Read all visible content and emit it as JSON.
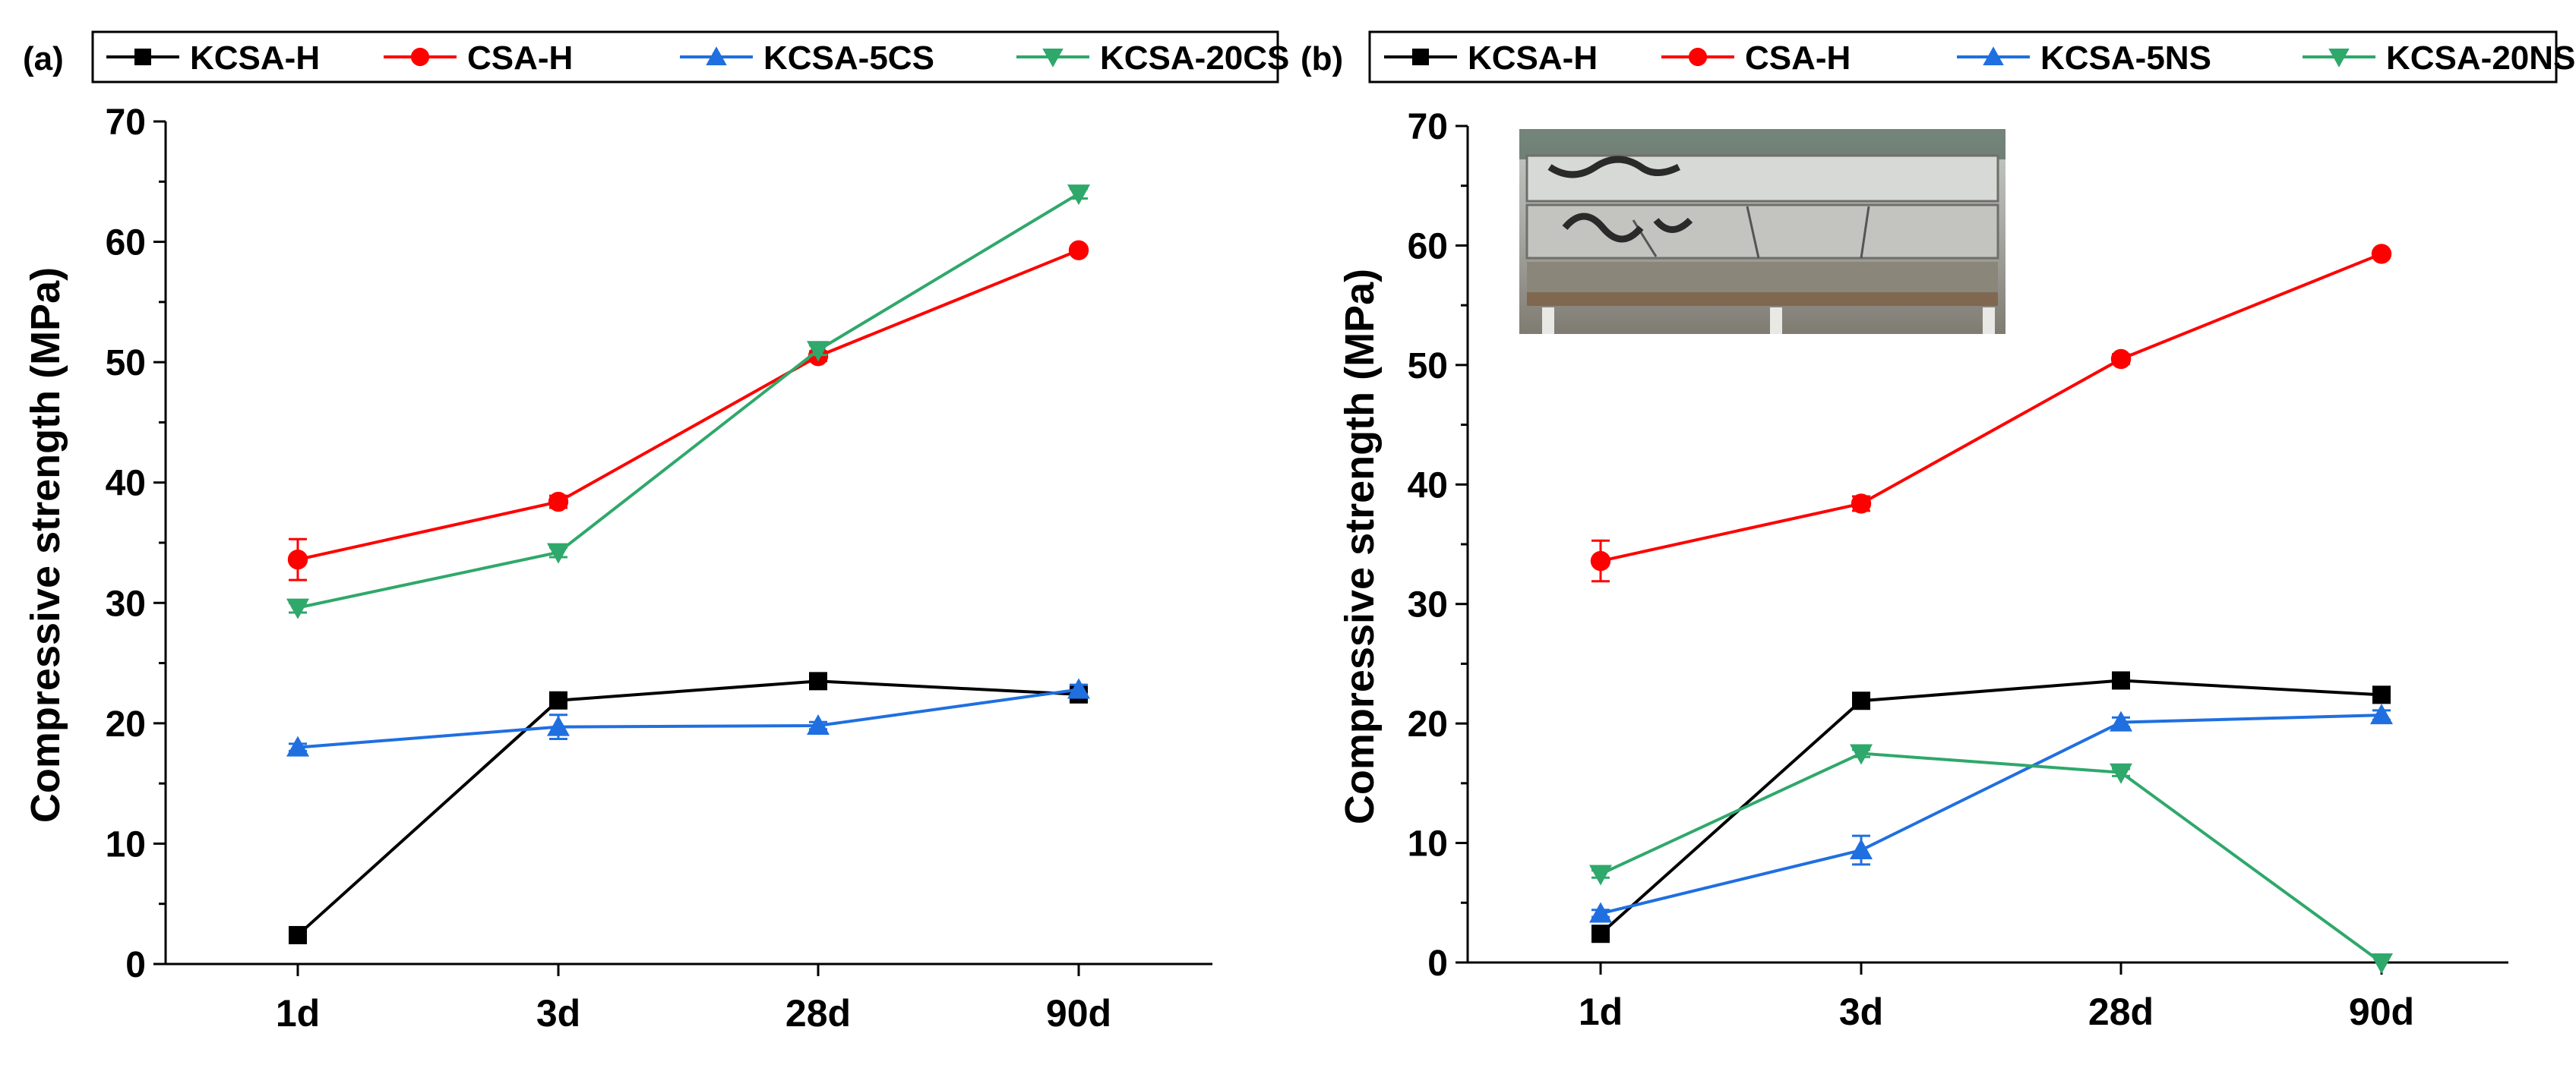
{
  "chart_data": [
    {
      "type": "line",
      "panel_label": "(a)",
      "categories": [
        "1d",
        "3d",
        "28d",
        "90d"
      ],
      "ylabel": "Compressive strength (MPa)",
      "xlabel": "",
      "ylim": [
        0,
        70
      ],
      "yticks": [
        "0",
        "10",
        "20",
        "30",
        "40",
        "50",
        "60",
        "70"
      ],
      "legend_position": "top",
      "series": [
        {
          "name": "KCSA-H",
          "color": "#000000",
          "marker": "square",
          "values": [
            2.4,
            21.9,
            23.5,
            22.4
          ],
          "errors": [
            0.3,
            0.4,
            0.4,
            0.3
          ]
        },
        {
          "name": "CSA-H",
          "color": "#ff0000",
          "marker": "circle",
          "values": [
            33.6,
            38.4,
            50.5,
            59.3
          ],
          "errors": [
            1.7,
            0.5,
            0.4,
            0.3
          ]
        },
        {
          "name": "KCSA-5CS",
          "color": "#1f6fe0",
          "marker": "triangle-up",
          "values": [
            18.0,
            19.7,
            19.8,
            22.8
          ],
          "errors": [
            0.3,
            1.0,
            0.3,
            0.4
          ]
        },
        {
          "name": "KCSA-20CS",
          "color": "#2fa86b",
          "marker": "triangle-down",
          "values": [
            29.6,
            34.2,
            51.0,
            64.0
          ],
          "errors": [
            0.4,
            0.4,
            0.4,
            0.4
          ]
        }
      ]
    },
    {
      "type": "line",
      "panel_label": "(b)",
      "categories": [
        "1d",
        "3d",
        "28d",
        "90d"
      ],
      "ylabel": "Compressive strength (MPa)",
      "xlabel": "",
      "ylim": [
        0,
        70
      ],
      "yticks": [
        "0",
        "10",
        "20",
        "30",
        "40",
        "50",
        "60",
        "70"
      ],
      "legend_position": "top",
      "inset": "photo of fractured specimen",
      "series": [
        {
          "name": "KCSA-H",
          "color": "#000000",
          "marker": "square",
          "values": [
            2.4,
            21.9,
            23.6,
            22.4
          ],
          "errors": [
            0.3,
            0.4,
            0.4,
            0.3
          ]
        },
        {
          "name": "CSA-H",
          "color": "#ff0000",
          "marker": "circle",
          "values": [
            33.6,
            38.4,
            50.5,
            59.3
          ],
          "errors": [
            1.7,
            0.6,
            0.4,
            0.3
          ]
        },
        {
          "name": "KCSA-5NS",
          "color": "#1f6fe0",
          "marker": "triangle-up",
          "values": [
            4.1,
            9.4,
            20.1,
            20.7
          ],
          "errors": [
            0.3,
            1.2,
            0.4,
            0.4
          ]
        },
        {
          "name": "KCSA-20NS",
          "color": "#2fa86b",
          "marker": "triangle-down",
          "values": [
            7.4,
            17.5,
            15.9,
            0.0
          ],
          "errors": [
            0.3,
            0.3,
            0.3,
            0.0
          ]
        }
      ]
    }
  ]
}
